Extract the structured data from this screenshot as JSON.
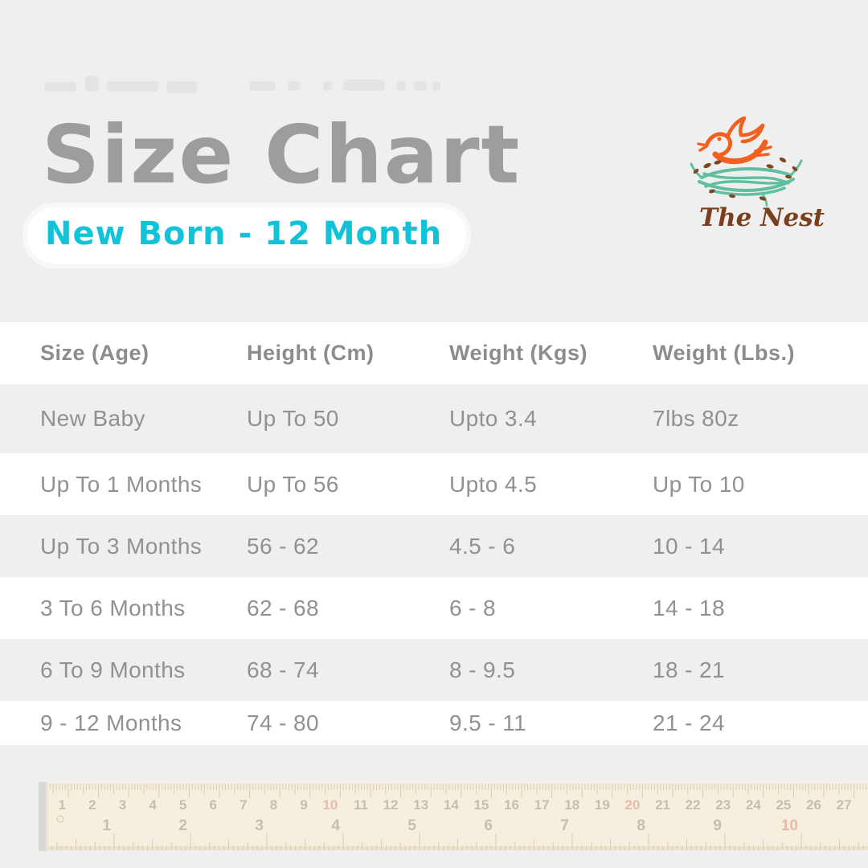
{
  "header": {
    "title": "Size Chart",
    "subtitle": "New Born - 12 Month"
  },
  "brand": {
    "name": "The Nest"
  },
  "chart_data": {
    "type": "table",
    "title": "Size Chart",
    "subtitle": "New Born - 12 Month",
    "columns": [
      "Size (Age)",
      "Height (Cm)",
      "Weight (Kgs)",
      "Weight (Lbs.)"
    ],
    "rows": [
      [
        "New Baby",
        "Up To 50",
        "Upto 3.4",
        "7lbs 80z"
      ],
      [
        "Up To 1 Months",
        "Up To 56",
        "Upto 4.5",
        "Up To 10"
      ],
      [
        "Up To 3 Months",
        "56 - 62",
        "4.5 - 6",
        "10 - 14"
      ],
      [
        "3 To 6 Months",
        "62 - 68",
        "6 - 8",
        "14 - 18"
      ],
      [
        "6 To 9 Months",
        "68 - 74",
        "8 - 9.5",
        "18 - 21"
      ],
      [
        "9 - 12 Months",
        "74 - 80",
        "9.5 - 11",
        "21 - 24"
      ]
    ],
    "layout_hints": {
      "header_row": true,
      "zebra_stripes": true,
      "grid": "off"
    }
  },
  "ruler": {
    "cm_count": 27,
    "inch_count": 10,
    "red_cm_numbers": [
      10,
      20
    ],
    "red_inch_numbers": [
      10
    ]
  },
  "colors": {
    "background": "#efeff0",
    "row_white": "#ffffff",
    "title_gray": "#9d9d9d",
    "table_text": "#8f9193",
    "accent_cyan": "#10c3d8",
    "logo_orange": "#f2601f",
    "logo_teal": "#5fbfa0",
    "logo_brown": "#7b3f1d",
    "ruler_body": "#f8f0db",
    "ruler_red": "#ecaf9b"
  }
}
